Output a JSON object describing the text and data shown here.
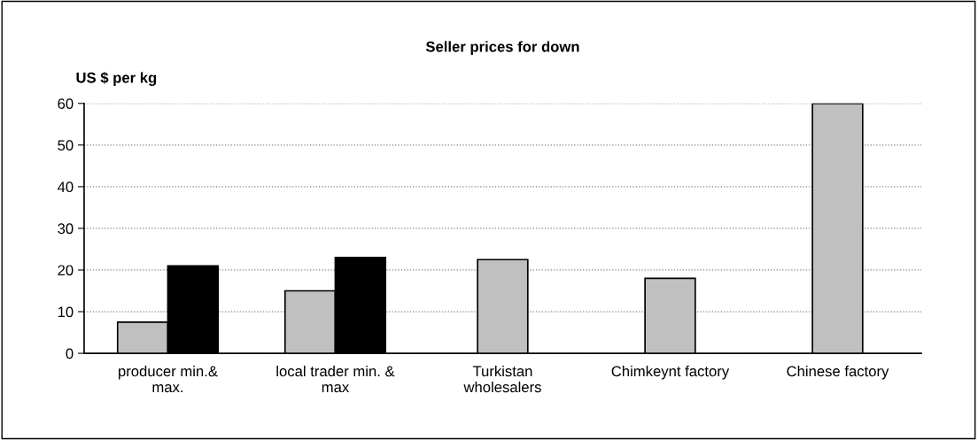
{
  "chart_data": {
    "type": "bar",
    "title": "Seller prices for down",
    "ylabel": "US $ per kg",
    "categories": [
      "producer min.&\nmax.",
      "local trader min. &\nmax",
      "Turkistan\nwholesalers",
      "Chimkeynt factory",
      "Chinese factory"
    ],
    "series": [
      {
        "color": "#c0c0c0",
        "values": [
          7.5,
          15,
          22.5,
          18,
          60
        ]
      },
      {
        "color": "#000000",
        "values": [
          21,
          23,
          null,
          null,
          null
        ]
      }
    ],
    "ylim": [
      0,
      60
    ],
    "yticks": [
      0,
      10,
      20,
      30,
      40,
      50,
      60
    ],
    "grid": "y"
  }
}
